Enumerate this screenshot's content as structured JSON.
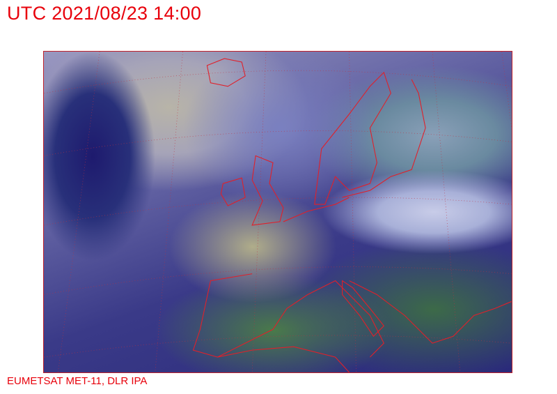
{
  "title": "UTC 2021/08/23 14:00",
  "credit": "EUMETSAT MET-11, DLR IPA",
  "colors": {
    "text": "#e8000b",
    "borders": "#d0202a"
  }
}
